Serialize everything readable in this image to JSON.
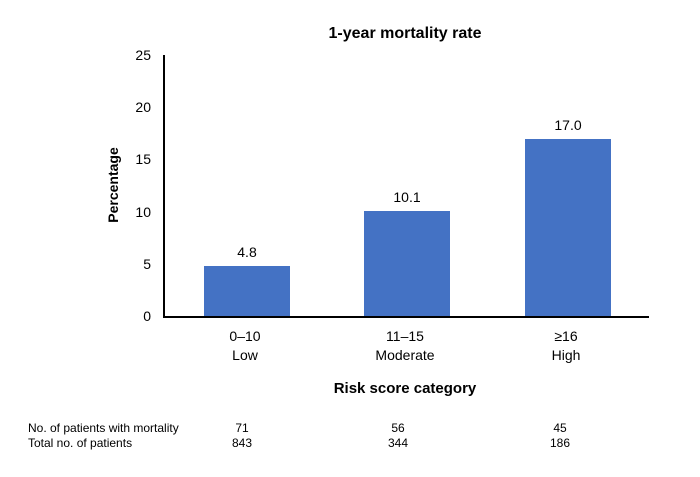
{
  "chart_data": {
    "type": "bar",
    "title": "1-year mortality rate",
    "xlabel": "Risk score category",
    "ylabel": "Percentage",
    "ylim": [
      0,
      25
    ],
    "yticks": [
      "0",
      "5",
      "10",
      "15",
      "20",
      "25"
    ],
    "grid": false,
    "legend": false,
    "bar_color": "#4472C4",
    "categories": [
      "0–10",
      "11–15",
      "≥16"
    ],
    "category_levels": [
      "Low",
      "Moderate",
      "High"
    ],
    "values": [
      4.8,
      10.1,
      17.0
    ],
    "value_labels": [
      "4.8",
      "10.1",
      "17.0"
    ]
  },
  "stats_table": {
    "rows": [
      {
        "label": "No. of patients with mortality",
        "values": [
          "71",
          "56",
          "45"
        ]
      },
      {
        "label": "Total no. of patients",
        "values": [
          "843",
          "344",
          "186"
        ]
      }
    ]
  }
}
